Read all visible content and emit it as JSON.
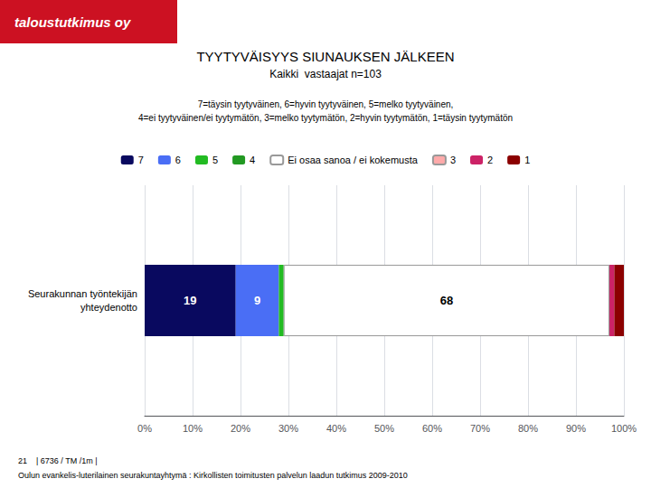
{
  "chart_data": {
    "type": "bar",
    "orientation": "horizontal",
    "stacked": true,
    "title": "TYYTYVÄISYYS SIUNAUKSEN JÄLKEEN",
    "subtitle": "Kaikki  vastaajat n=103",
    "annotations": [
      "taloustutkimus oy",
      "7=täysin tyytyväinen, 6=hyvin tyytyväinen, 5=melko tyytyväinen,\n4=ei tyytyväinen/ei tyytymätön, 3=melko tyytymätön, 2=hyvin tyytymätön, 1=täysin tyytymätön",
      "21    | 6736 / TM /1m |",
      "Oulun evankelis-luterilainen seurakuntayhtymä : Kirkollisten toimitusten palvelun laadun tutkimus 2009-2010"
    ],
    "categories": [
      "Seurakunnan työntekijän\nyhteydenotto"
    ],
    "series": [
      {
        "name": "7",
        "color": "#09095f",
        "values": [
          19
        ],
        "data_labels": true
      },
      {
        "name": "6",
        "color": "#4a6ef5",
        "values": [
          9
        ],
        "data_labels": true
      },
      {
        "name": "5",
        "color": "#22bb22",
        "values": [
          1
        ],
        "data_labels": false
      },
      {
        "name": "4",
        "color": "#229922",
        "values": [
          0
        ],
        "data_labels": false
      },
      {
        "name": "Ei osaa sanoa / ei kokemusta",
        "color": "#ffffff",
        "values": [
          68
        ],
        "data_labels": true
      },
      {
        "name": "3",
        "color": "#ffaaaa",
        "values": [
          0
        ],
        "data_labels": false
      },
      {
        "name": "2",
        "color": "#cc2266",
        "values": [
          1
        ],
        "data_labels": false
      },
      {
        "name": "1",
        "color": "#8b0000",
        "values": [
          2
        ],
        "data_labels": false
      }
    ],
    "xlim": [
      0,
      100
    ],
    "xticks": [
      {
        "value": 0,
        "label": "0%"
      },
      {
        "value": 10,
        "label": "10%"
      },
      {
        "value": 20,
        "label": "20%"
      },
      {
        "value": 30,
        "label": "30%"
      },
      {
        "value": 40,
        "label": "40%"
      },
      {
        "value": 50,
        "label": "50%"
      },
      {
        "value": 60,
        "label": "60%"
      },
      {
        "value": 70,
        "label": "70%"
      },
      {
        "value": 80,
        "label": "80%"
      },
      {
        "value": 90,
        "label": "90%"
      },
      {
        "value": 100,
        "label": "100%"
      }
    ],
    "grid": true,
    "legend": "top"
  }
}
